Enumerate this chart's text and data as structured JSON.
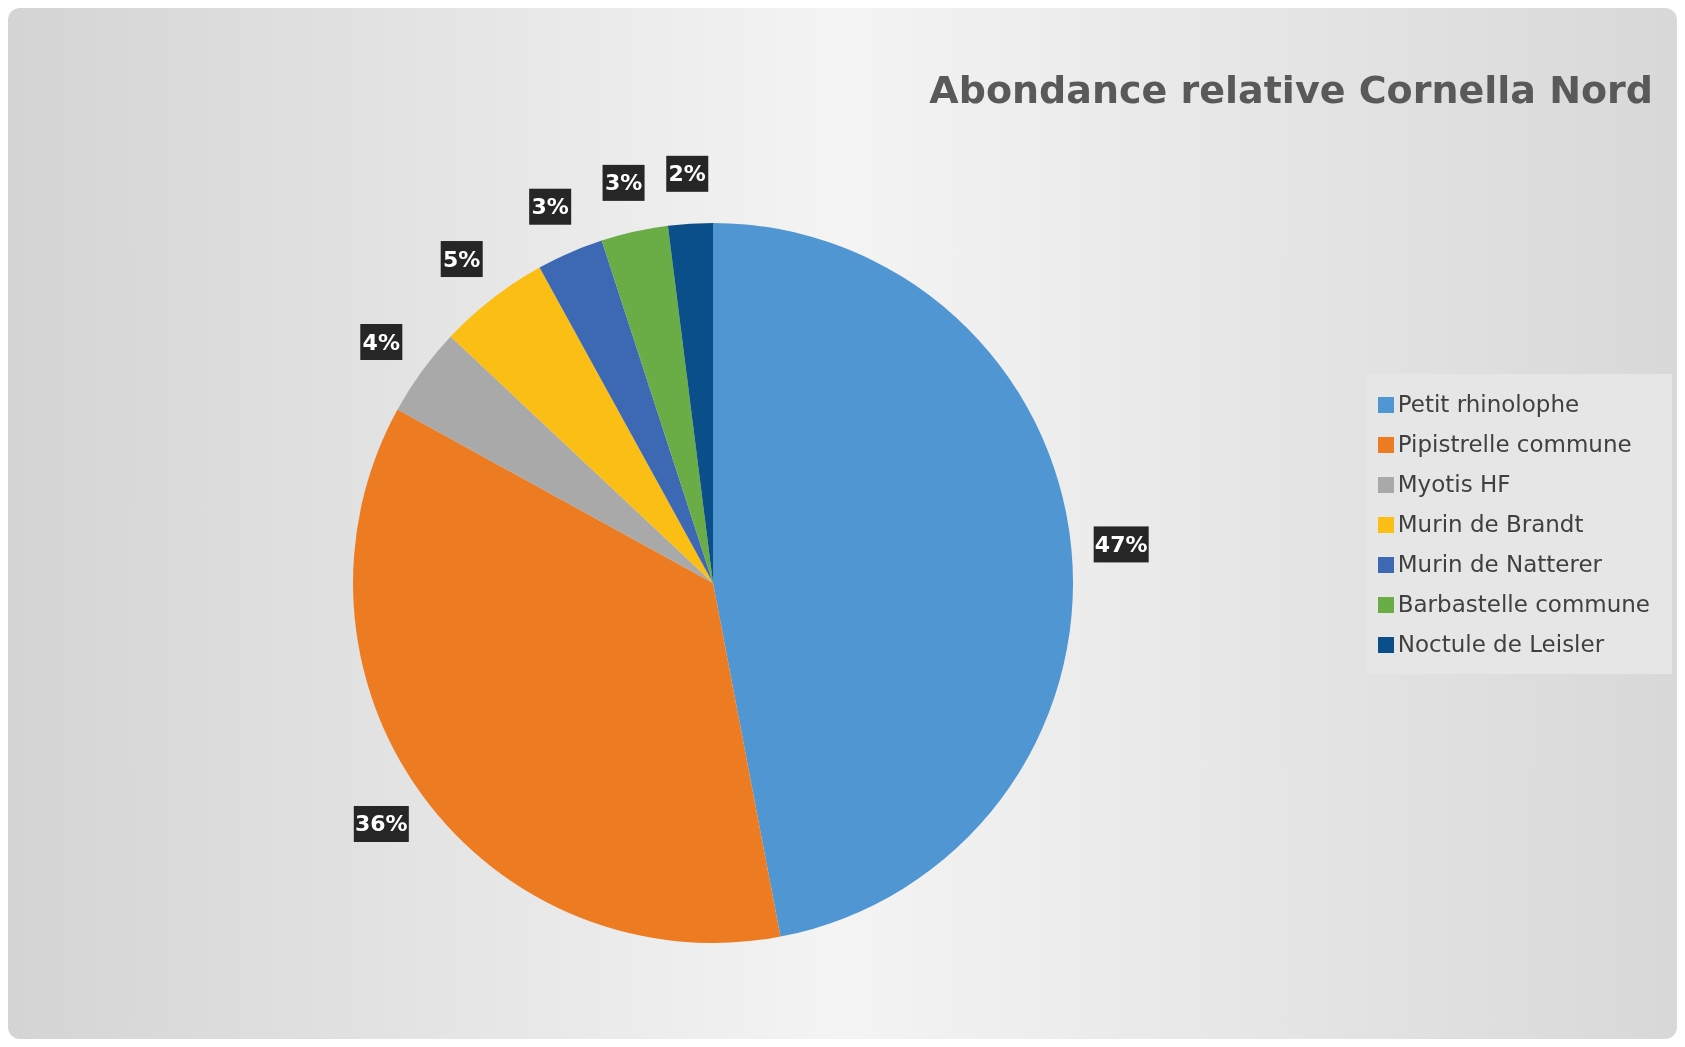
{
  "chart_data": {
    "type": "pie",
    "title": "Abondance relative Cornella Nord",
    "categories": [
      "Petit rhinolophe",
      "Pipistrelle commune",
      "Myotis HF",
      "Murin de Brandt",
      "Murin de Natterer",
      "Barbastelle commune",
      "Noctule de Leisler"
    ],
    "values": [
      47,
      36,
      4,
      5,
      3,
      3,
      2
    ],
    "value_labels": [
      "47%",
      "36%",
      "4%",
      "5%",
      "3%",
      "3%",
      "2%"
    ],
    "colors": [
      "#5096d2",
      "#ed7b22",
      "#a9a9a9",
      "#fbbe14",
      "#3d68b4",
      "#6aac46",
      "#0a4f8a"
    ],
    "legend": "right"
  }
}
